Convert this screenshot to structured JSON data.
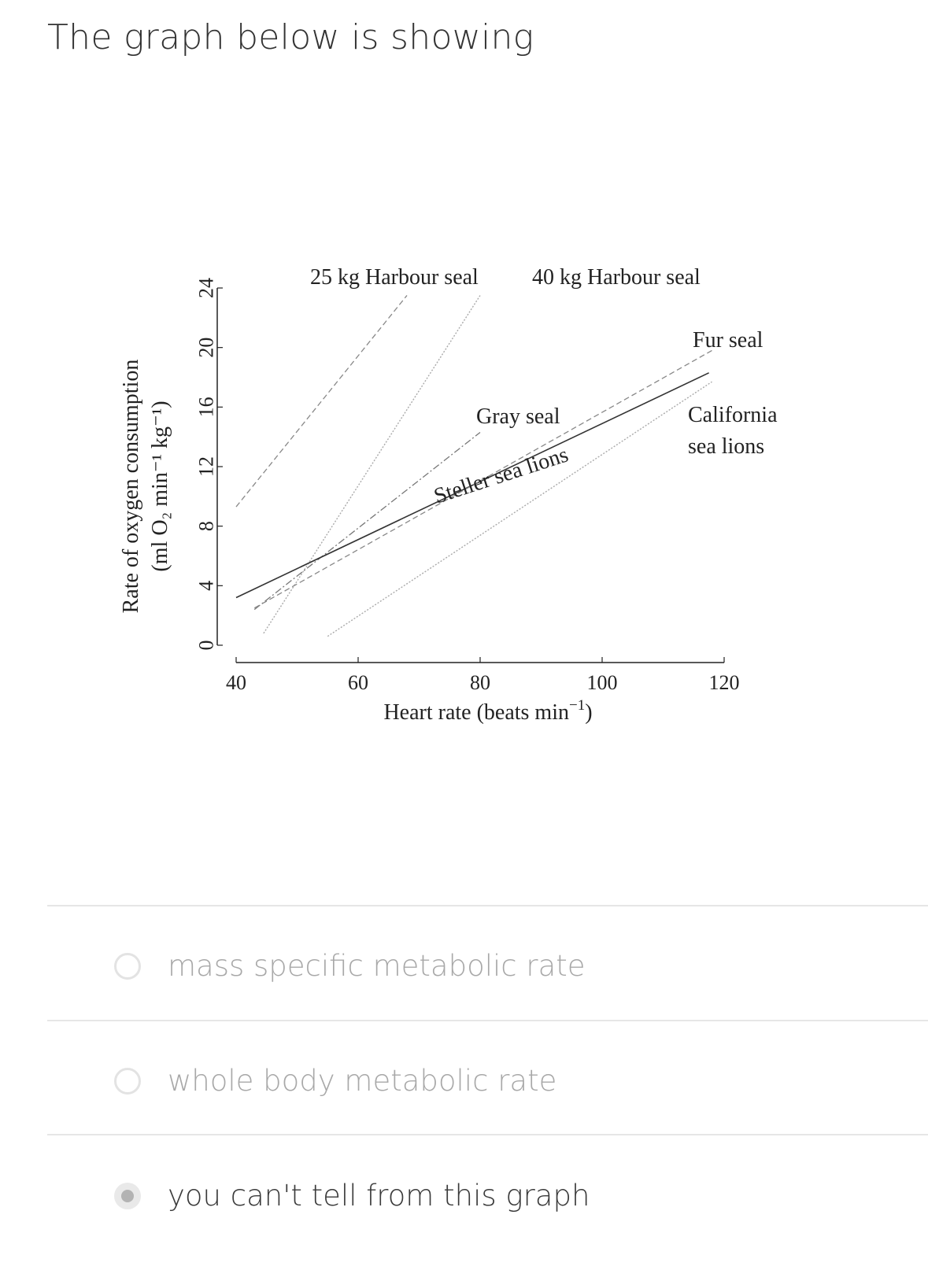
{
  "question": "The graph below is showing",
  "chart_data": {
    "type": "line",
    "xlabel": "Heart rate (beats min",
    "xlabel_sup": "−1",
    "ylabel_line1": "Rate of oxygen consumption",
    "ylabel_line2": "(ml O₂ min⁻¹ kg⁻¹)",
    "xlim": [
      40,
      120
    ],
    "ylim": [
      0,
      24
    ],
    "x_ticks": [
      "40",
      "60",
      "80",
      "100",
      "120"
    ],
    "y_ticks": [
      "0",
      "4",
      "8",
      "12",
      "16",
      "20",
      "24"
    ],
    "grid": false,
    "series": [
      {
        "name": "25 kg Harbour seal",
        "style": "dashed",
        "x": [
          40,
          68
        ],
        "y": [
          9.3,
          23.5
        ]
      },
      {
        "name": "40 kg Harbour seal",
        "style": "dotted",
        "x": [
          44.5,
          80
        ],
        "y": [
          0.8,
          23.5
        ]
      },
      {
        "name": "Gray seal",
        "style": "dashdot",
        "x": [
          43,
          80
        ],
        "y": [
          2.4,
          14.3
        ]
      },
      {
        "name": "Steller sea lions",
        "style": "solid",
        "x": [
          40,
          117.5
        ],
        "y": [
          3.2,
          18.3
        ]
      },
      {
        "name": "Fur seal",
        "style": "dashed",
        "x": [
          43,
          118
        ],
        "y": [
          2.5,
          19.8
        ]
      },
      {
        "name": "California sea lions",
        "style": "dotted",
        "x": [
          55,
          118
        ],
        "y": [
          0.6,
          17.7
        ]
      }
    ],
    "annotations": {
      "harbour25": "25 kg Harbour seal",
      "harbour40": "40 kg Harbour seal",
      "fur": "Fur seal",
      "gray": "Gray seal",
      "steller": "Steller sea lions",
      "california_1": "California",
      "california_2": "sea lions"
    }
  },
  "options": [
    {
      "label": "mass specific metabolic rate",
      "selected": false
    },
    {
      "label": "whole body metabolic rate",
      "selected": false
    },
    {
      "label": "you can't tell from this graph",
      "selected": true
    }
  ]
}
